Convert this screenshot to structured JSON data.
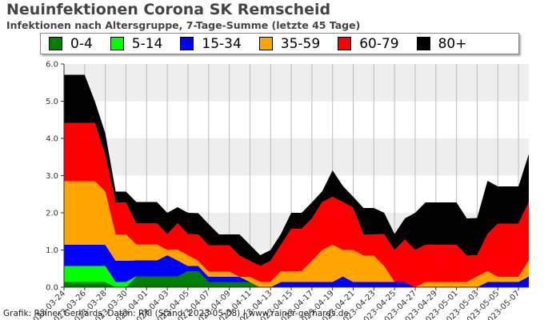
{
  "title": "Neuinfektionen Corona SK Remscheid",
  "subtitle": "Infektionen nach Altersgruppe, 7-Tage-Summe (letzte 45 Tage)",
  "footer": "Grafik: Rainer Gerhards, Daten: RKI (Stand: 2023-05-08) | www.rainer-gerhards.de",
  "chart_data": {
    "type": "area",
    "stacked": true,
    "title": "Neuinfektionen Corona SK Remscheid",
    "subtitle": "Infektionen nach Altersgruppe, 7-Tage-Summe (letzte 45 Tage)",
    "ylim": [
      0,
      6
    ],
    "yticks": [
      "0.0",
      "1.0",
      "2.0",
      "3.0",
      "4.0",
      "5.0",
      "6.0"
    ],
    "grid": true,
    "legend_position": "top",
    "x": [
      "2023-03-24",
      "2023-03-25",
      "2023-03-26",
      "2023-03-27",
      "2023-03-28",
      "2023-03-29",
      "2023-03-30",
      "2023-03-31",
      "2023-04-01",
      "2023-04-02",
      "2023-04-03",
      "2023-04-04",
      "2023-04-05",
      "2023-04-06",
      "2023-04-07",
      "2023-04-08",
      "2023-04-09",
      "2023-04-10",
      "2023-04-11",
      "2023-04-12",
      "2023-04-13",
      "2023-04-14",
      "2023-04-15",
      "2023-04-16",
      "2023-04-17",
      "2023-04-18",
      "2023-04-19",
      "2023-04-20",
      "2023-04-21",
      "2023-04-22",
      "2023-04-23",
      "2023-04-24",
      "2023-04-25",
      "2023-04-26",
      "2023-04-27",
      "2023-04-28",
      "2023-04-29",
      "2023-04-30",
      "2023-05-01",
      "2023-05-02",
      "2023-05-03",
      "2023-05-04",
      "2023-05-05",
      "2023-05-06",
      "2023-05-07",
      "2023-05-08"
    ],
    "xticks": [
      "2023-03-24",
      "2023-03-26",
      "2023-03-28",
      "2023-03-30",
      "2023-04-01",
      "2023-04-03",
      "2023-04-05",
      "2023-04-07",
      "2023-04-09",
      "2023-04-11",
      "2023-04-13",
      "2023-04-15",
      "2023-04-17",
      "2023-04-19",
      "2023-04-21",
      "2023-04-23",
      "2023-04-25",
      "2023-04-27",
      "2023-04-29",
      "2023-05-01",
      "2023-05-03",
      "2023-05-05",
      "2023-05-07"
    ],
    "series": [
      {
        "name": "0-4",
        "color": "#007f00",
        "values": [
          0.14,
          0.14,
          0.14,
          0.14,
          0.14,
          0,
          0,
          0.29,
          0.29,
          0.29,
          0.29,
          0.29,
          0.43,
          0.43,
          0.14,
          0.14,
          0.14,
          0.14,
          0.14,
          0,
          0,
          0,
          0,
          0,
          0,
          0,
          0,
          0,
          0,
          0,
          0,
          0,
          0,
          0,
          0,
          0,
          0,
          0,
          0,
          0,
          0,
          0,
          0,
          0,
          0,
          0
        ]
      },
      {
        "name": "5-14",
        "color": "#00ff00",
        "values": [
          0.43,
          0.43,
          0.43,
          0.43,
          0.43,
          0.14,
          0.14,
          0,
          0,
          0,
          0,
          0,
          0,
          0,
          0,
          0,
          0,
          0,
          0,
          0,
          0,
          0,
          0,
          0,
          0,
          0,
          0,
          0,
          0,
          0,
          0,
          0,
          0,
          0,
          0,
          0,
          0,
          0,
          0,
          0,
          0,
          0,
          0,
          0,
          0,
          0
        ]
      },
      {
        "name": "15-34",
        "color": "#0000ff",
        "values": [
          0.57,
          0.57,
          0.57,
          0.57,
          0.57,
          0.57,
          0.57,
          0.43,
          0.43,
          0.43,
          0.57,
          0.43,
          0.14,
          0.14,
          0.14,
          0.14,
          0.14,
          0.14,
          0,
          0,
          0,
          0.14,
          0.14,
          0.14,
          0.14,
          0.14,
          0.14,
          0.29,
          0.14,
          0.14,
          0.14,
          0.14,
          0.14,
          0.14,
          0,
          0,
          0,
          0,
          0,
          0,
          0,
          0.14,
          0.14,
          0.14,
          0.14,
          0.29
        ]
      },
      {
        "name": "35-59",
        "color": "#ffa500",
        "values": [
          1.71,
          1.71,
          1.71,
          1.71,
          1.43,
          0.71,
          0.71,
          0.43,
          0.43,
          0.43,
          0.14,
          0.29,
          0.29,
          0.14,
          0.14,
          0.14,
          0.14,
          0,
          0.14,
          0.14,
          0.14,
          0.29,
          0.29,
          0.29,
          0.57,
          0.86,
          1,
          0.71,
          0.86,
          0.71,
          0.71,
          0.43,
          0,
          0,
          0,
          0.14,
          0.14,
          0.14,
          0.14,
          0.14,
          0.29,
          0.29,
          0.14,
          0.14,
          0.14,
          0.43
        ]
      },
      {
        "name": "60-79",
        "color": "#ff0000",
        "values": [
          1.57,
          1.57,
          1.57,
          1.57,
          1,
          0.86,
          0.86,
          0.57,
          0.57,
          0.57,
          0.43,
          0.71,
          0.57,
          0.71,
          0.71,
          0.71,
          0.71,
          0.57,
          0.43,
          0.43,
          0.57,
          0.71,
          1.14,
          1.14,
          1.14,
          1.29,
          1.29,
          1.29,
          1.14,
          0.57,
          0.57,
          0.86,
          0.86,
          1.14,
          1,
          1,
          1,
          1,
          1,
          0.71,
          0.57,
          1,
          1.43,
          1.43,
          1.43,
          1.57
        ]
      },
      {
        "name": "80+",
        "color": "#000000",
        "values": [
          1.29,
          1.29,
          1.29,
          0.57,
          0.57,
          0.29,
          0.29,
          0.57,
          0.57,
          0.57,
          0.57,
          0.43,
          0.57,
          0.57,
          0.57,
          0.29,
          0.29,
          0.57,
          0.43,
          0.29,
          0.29,
          0.29,
          0.43,
          0.43,
          0.43,
          0.29,
          0.71,
          0.43,
          0.29,
          0.71,
          0.71,
          0.57,
          0.43,
          0.57,
          1,
          1.14,
          1.14,
          1.14,
          1.14,
          1,
          1,
          1.43,
          1,
          1,
          1,
          1.29
        ]
      }
    ]
  }
}
